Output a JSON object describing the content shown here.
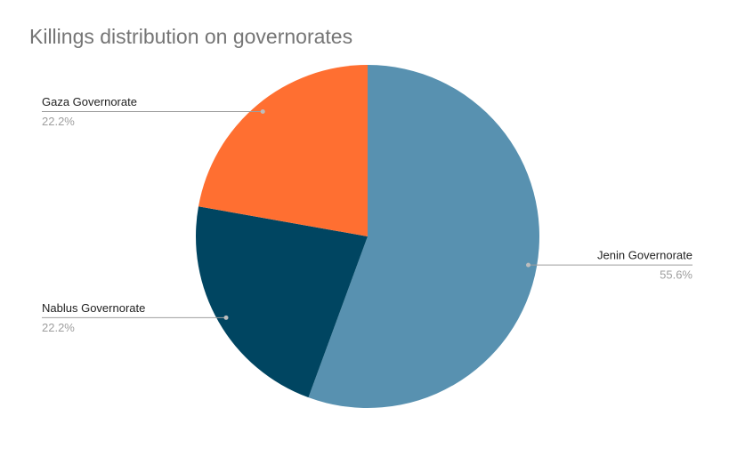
{
  "chart_data": {
    "type": "pie",
    "title": "Killings distribution on governorates",
    "categories": [
      "Jenin Governorate",
      "Nablus Governorate",
      "Gaza Governorate"
    ],
    "values": [
      55.6,
      22.2,
      22.2
    ],
    "value_labels": [
      "55.6%",
      "22.2%",
      "22.2%"
    ],
    "colors": [
      "#5891b0",
      "#004561",
      "#ff6f31"
    ]
  }
}
